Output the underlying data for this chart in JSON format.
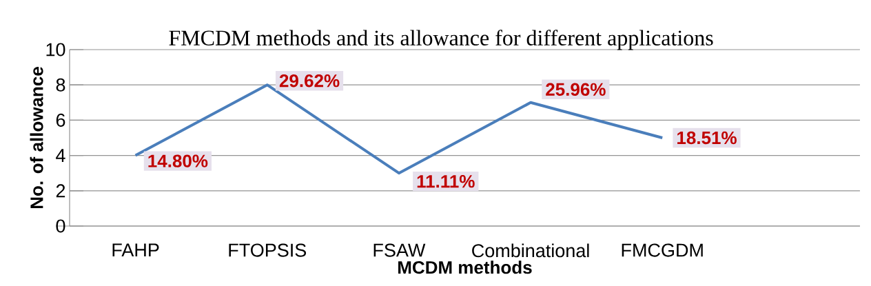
{
  "chart_data": {
    "type": "line",
    "title": "FMCDM methods and its allowance for different applications",
    "xlabel": "MCDM methods",
    "ylabel": "No. of allowance",
    "categories": [
      "FAHP",
      "FTOPSIS",
      "FSAW",
      "Combinational",
      "FMCGDM"
    ],
    "values": [
      4,
      8,
      3,
      7,
      5
    ],
    "annotations": [
      {
        "text": "14.80%",
        "x": "FAHP",
        "y": 4
      },
      {
        "text": "29.62%",
        "x": "FTOPSIS",
        "y": 8
      },
      {
        "text": "11.11%",
        "x": "FSAW",
        "y": 3
      },
      {
        "text": "25.96%",
        "x": "Combinational",
        "y": 7
      },
      {
        "text": "18.51%",
        "x": "FMCGDM",
        "y": 5
      }
    ],
    "color": "#4a7ebb",
    "ylim": [
      0,
      10
    ],
    "yticks": [
      0,
      2,
      4,
      6,
      8,
      10
    ],
    "grid": "y",
    "marker": "none",
    "line_style": "solid"
  }
}
